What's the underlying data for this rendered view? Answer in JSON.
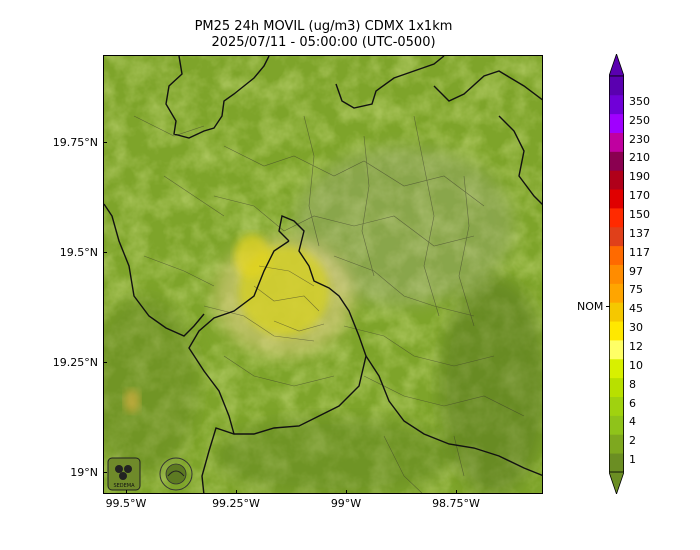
{
  "map": {
    "title_line1": "PM25 24h MOVIL (ug/m3) CDMX 1x1km",
    "title_line2": "2025/07/11 - 05:00:00 (UTC-0500)",
    "lat_labels": [
      "19.75°N",
      "19.5°N",
      "19.25°N",
      "19°N"
    ],
    "lon_labels": [
      "99.5°W",
      "99.25°W",
      "99°W",
      "98.75°W"
    ],
    "logos": [
      "sedema-logo",
      "calidad-del-aire-logo"
    ]
  },
  "colorbar": {
    "levels": [
      "1",
      "2",
      "4",
      "6",
      "8",
      "10",
      "12",
      "30",
      "45",
      "75",
      "97",
      "117",
      "137",
      "150",
      "170",
      "190",
      "210",
      "230",
      "250",
      "350"
    ],
    "colors": [
      "#6b8e23",
      "#7ea81f",
      "#8fc31a",
      "#a0d20f",
      "#b8e000",
      "#d8f000",
      "#ffff66",
      "#ffe800",
      "#f5c800",
      "#ffa500",
      "#ff8c00",
      "#ff6a00",
      "#e0401a",
      "#ff2a00",
      "#e00000",
      "#b0001a",
      "#8a0050",
      "#c000a0",
      "#a000ff",
      "#7000d8",
      "#5a00b0"
    ],
    "nom_label": "NOM",
    "nom_value": "45"
  }
}
